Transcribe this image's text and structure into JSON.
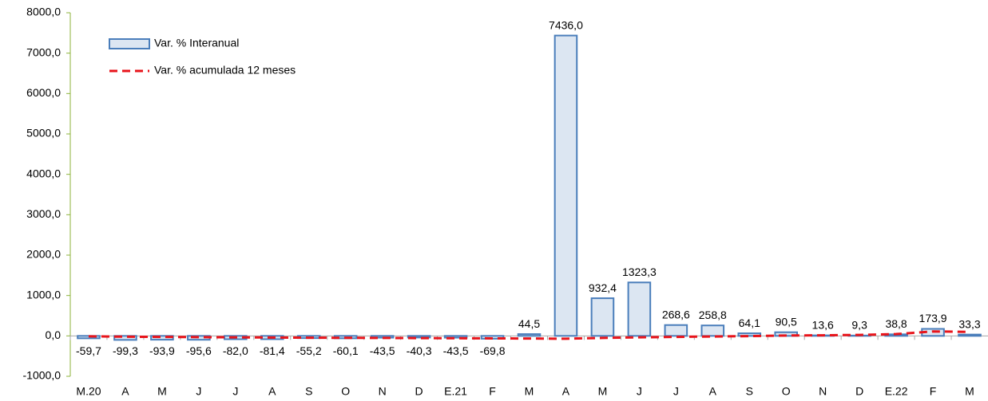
{
  "chart_data": {
    "type": "bar",
    "categories": [
      "M.20",
      "A",
      "M",
      "J",
      "J",
      "A",
      "S",
      "O",
      "N",
      "D",
      "E.21",
      "F",
      "M",
      "A",
      "M",
      "J",
      "J",
      "A",
      "S",
      "O",
      "N",
      "D",
      "E.22",
      "F",
      "M"
    ],
    "series": [
      {
        "name": "Var. % Interanual",
        "type": "bar",
        "color": "#dce6f2",
        "edge_color": "#4a7ebb",
        "values": [
          -59.7,
          -99.3,
          -93.9,
          -95.6,
          -82.0,
          -81.4,
          -55.2,
          -60.1,
          -43.5,
          -40.3,
          -43.5,
          -69.8,
          44.5,
          7436.0,
          932.4,
          1323.3,
          268.6,
          258.8,
          64.1,
          90.5,
          13.6,
          9.3,
          38.8,
          173.9,
          33.3
        ],
        "value_labels": [
          "-59,7",
          "-99,3",
          "-93,9",
          "-95,6",
          "-82,0",
          "-81,4",
          "-55,2",
          "-60,1",
          "-43,5",
          "-40,3",
          "-43,5",
          "-69,8",
          "44,5",
          "7436,0",
          "932,4",
          "1323,3",
          "268,6",
          "258,8",
          "64,1",
          "90,5",
          "13,6",
          "9,3",
          "38,8",
          "173,9",
          "33,3"
        ]
      },
      {
        "name": "Var. % acumulada 12 meses",
        "type": "line",
        "color": "#e8141b",
        "dashed": true,
        "values": [
          -10,
          -20,
          -25,
          -30,
          -35,
          -40,
          -45,
          -48,
          -50,
          -55,
          -58,
          -62,
          -65,
          -70,
          -50,
          -35,
          -25,
          -15,
          -5,
          10,
          15,
          25,
          45,
          110,
          100
        ]
      }
    ],
    "ylim": [
      -1000,
      8000
    ],
    "yticks": [
      {
        "value": -1000,
        "label": "-1000,0"
      },
      {
        "value": 0,
        "label": "0,0"
      },
      {
        "value": 1000,
        "label": "1000,0"
      },
      {
        "value": 2000,
        "label": "2000,0"
      },
      {
        "value": 3000,
        "label": "3000,0"
      },
      {
        "value": 4000,
        "label": "4000,0"
      },
      {
        "value": 5000,
        "label": "5000,0"
      },
      {
        "value": 6000,
        "label": "6000,0"
      },
      {
        "value": 7000,
        "label": "7000,0"
      },
      {
        "value": 8000,
        "label": "8000,0"
      }
    ],
    "grid": false,
    "legend": "upper left"
  }
}
